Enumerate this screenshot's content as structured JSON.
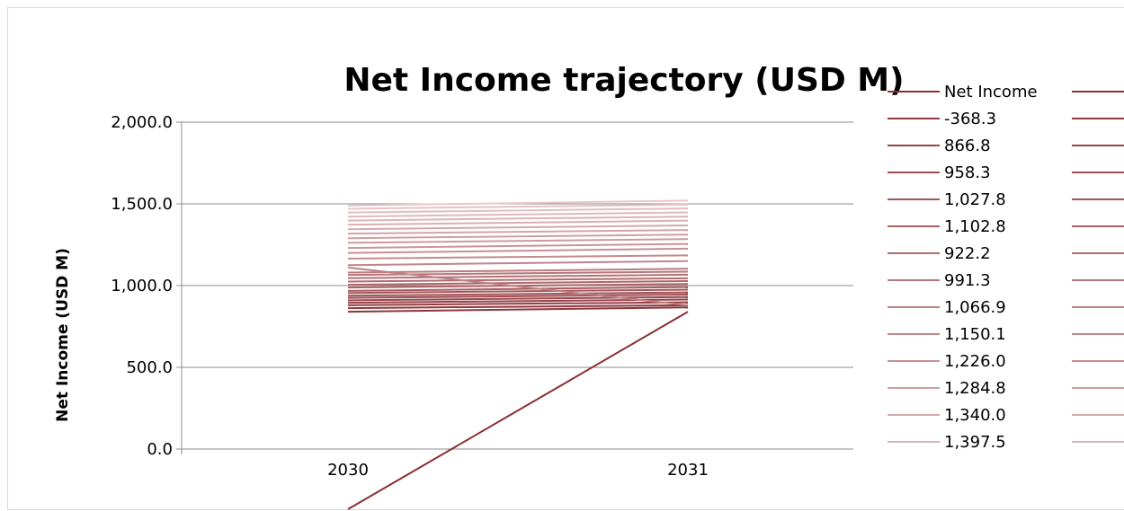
{
  "chart_data": {
    "type": "line",
    "title": "Net Income trajectory (USD M)",
    "xlabel": "",
    "ylabel": "Net Income (USD M)",
    "categories": [
      "2030",
      "2031"
    ],
    "ylim": [
      0,
      2000
    ],
    "yticks": [
      "0.0",
      "500.0",
      "1,000.0",
      "1,500.0",
      "2,000.0"
    ],
    "grid": true,
    "legend_position": "right",
    "legend_header": "Net Income",
    "legend_items": [
      "-368.3",
      "866.8",
      "958.3",
      "1,027.8",
      "1,102.8",
      "922.2",
      "991.3",
      "1,066.9",
      "1,150.1",
      "1,226.0",
      "1,284.8",
      "1,340.0",
      "1,397.5"
    ],
    "color_dark": "#8b2f35",
    "color_light": "#e8c8cb",
    "series": [
      {
        "values": [
          -368.3,
          840
        ]
      },
      {
        "values": [
          840,
          866.8
        ]
      },
      {
        "values": [
          862,
          880
        ]
      },
      {
        "values": [
          880,
          898
        ]
      },
      {
        "values": [
          895,
          915
        ]
      },
      {
        "values": [
          910,
          930
        ]
      },
      {
        "values": [
          925,
          945
        ]
      },
      {
        "values": [
          938,
          958.3
        ]
      },
      {
        "values": [
          955,
          975
        ]
      },
      {
        "values": [
          968,
          991.3
        ]
      },
      {
        "values": [
          988,
          1010
        ]
      },
      {
        "values": [
          1005,
          1027.8
        ]
      },
      {
        "values": [
          1025,
          1045
        ]
      },
      {
        "values": [
          1045,
          1066.9
        ]
      },
      {
        "values": [
          1065,
          1085
        ]
      },
      {
        "values": [
          1080,
          1102.8
        ]
      },
      {
        "values": [
          1110,
          880
        ]
      },
      {
        "values": [
          1125,
          1150.1
        ]
      },
      {
        "values": [
          1165,
          1185
        ]
      },
      {
        "values": [
          1200,
          1226.0
        ]
      },
      {
        "values": [
          1230,
          1255
        ]
      },
      {
        "values": [
          1262,
          1284.8
        ]
      },
      {
        "values": [
          1290,
          1312
        ]
      },
      {
        "values": [
          1318,
          1340.0
        ]
      },
      {
        "values": [
          1345,
          1368
        ]
      },
      {
        "values": [
          1372,
          1397.5
        ]
      },
      {
        "values": [
          1398,
          1422
        ]
      },
      {
        "values": [
          1422,
          1448
        ]
      },
      {
        "values": [
          1447,
          1472
        ]
      },
      {
        "values": [
          1470,
          1496
        ]
      },
      {
        "values": [
          1490,
          1520
        ]
      }
    ]
  }
}
